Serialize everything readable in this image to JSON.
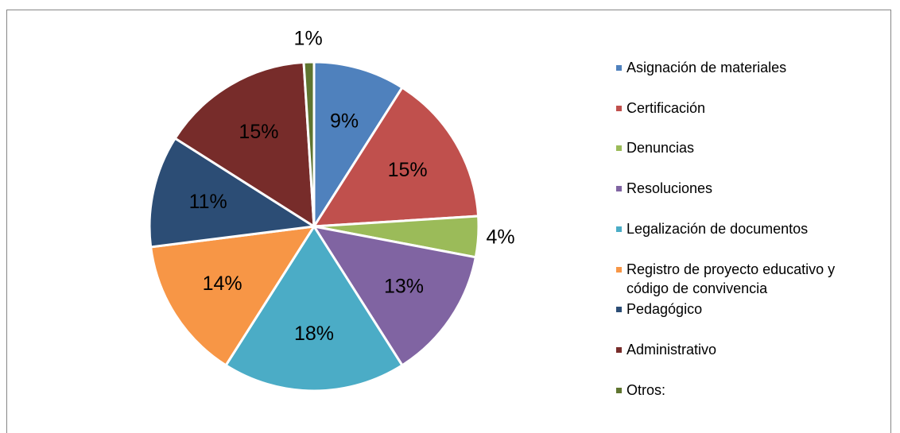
{
  "chart_data": {
    "type": "pie",
    "categories": [
      "Asignación de materiales",
      "Certificación",
      "Denuncias",
      "Resoluciones",
      "Legalización de documentos",
      "Registro de proyecto educativo y código de convivencia",
      "Pedagógico",
      "Administrativo",
      "Otros:"
    ],
    "values": [
      9,
      15,
      4,
      13,
      18,
      14,
      11,
      15,
      1
    ],
    "value_labels": [
      "9%",
      "15%",
      "4%",
      "13%",
      "18%",
      "14%",
      "11%",
      "15%",
      "1%"
    ],
    "colors": [
      "#4f81bd",
      "#c0504d",
      "#9bbb59",
      "#8064a2",
      "#4bacc6",
      "#f79646",
      "#2c4d75",
      "#772c2a",
      "#5f7530"
    ],
    "legend": "right"
  }
}
